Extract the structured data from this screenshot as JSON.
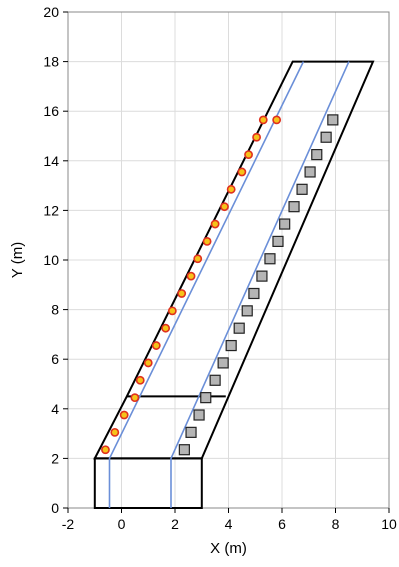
{
  "chart_data": {
    "type": "scatter",
    "title": "",
    "xlabel": "X (m)",
    "ylabel": "Y (m)",
    "xlim": [
      -2,
      10
    ],
    "ylim": [
      0,
      20
    ],
    "xticks": [
      "-2",
      "0",
      "2",
      "4",
      "6",
      "8",
      "10"
    ],
    "yticks": [
      "0",
      "2",
      "4",
      "6",
      "8",
      "10",
      "12",
      "14",
      "16",
      "18",
      "20"
    ],
    "grid": true,
    "colors": {
      "grid": "#dcdcdc",
      "outline": "#000000",
      "guide_line": "#6b8fd8",
      "circle_fill": "#f6c21a",
      "circle_edge": "#e0301e",
      "square_fill": "#b5b5b5",
      "square_edge": "#222222"
    },
    "outline_polygons": [
      {
        "points": [
          [
            -1.0,
            0.0
          ],
          [
            3.0,
            0.0
          ],
          [
            3.0,
            2.0
          ],
          [
            -1.0,
            2.0
          ]
        ]
      },
      {
        "points": [
          [
            -1.0,
            2.0
          ],
          [
            3.0,
            2.0
          ],
          [
            9.4,
            18.0
          ],
          [
            6.4,
            18.0
          ],
          [
            0.2,
            4.5
          ]
        ]
      },
      {
        "points": [
          [
            0.2,
            4.5
          ],
          [
            3.9,
            4.5
          ]
        ]
      }
    ],
    "guide_lines": [
      {
        "points": [
          [
            -0.45,
            0.0
          ],
          [
            -0.45,
            2.0
          ],
          [
            6.8,
            18.0
          ]
        ]
      },
      {
        "points": [
          [
            1.85,
            0.0
          ],
          [
            1.85,
            2.0
          ],
          [
            8.5,
            18.0
          ]
        ]
      }
    ],
    "series": [
      {
        "marker": "circle",
        "x": [
          -0.6,
          -0.25,
          0.1,
          0.5,
          0.7,
          1.0,
          1.3,
          1.65,
          1.9,
          2.25,
          2.6,
          2.85,
          3.2,
          3.5,
          3.85,
          4.1,
          4.5,
          4.75,
          5.05,
          5.3,
          5.8
        ],
        "y": [
          2.35,
          3.05,
          3.75,
          4.45,
          5.15,
          5.85,
          6.55,
          7.25,
          7.95,
          8.65,
          9.35,
          10.05,
          10.75,
          11.45,
          12.15,
          12.85,
          13.55,
          14.25,
          14.95,
          15.65,
          15.65
        ]
      },
      {
        "marker": "square",
        "x": [
          2.35,
          2.6,
          2.9,
          3.15,
          3.5,
          3.8,
          4.1,
          4.4,
          4.7,
          4.95,
          5.25,
          5.55,
          5.85,
          6.1,
          6.45,
          6.75,
          7.05,
          7.3,
          7.65,
          7.9
        ],
        "y": [
          2.35,
          3.05,
          3.75,
          4.45,
          5.15,
          5.85,
          6.55,
          7.25,
          7.95,
          8.65,
          9.35,
          10.05,
          10.75,
          11.45,
          12.15,
          12.85,
          13.55,
          14.25,
          14.95,
          15.65
        ]
      }
    ]
  }
}
